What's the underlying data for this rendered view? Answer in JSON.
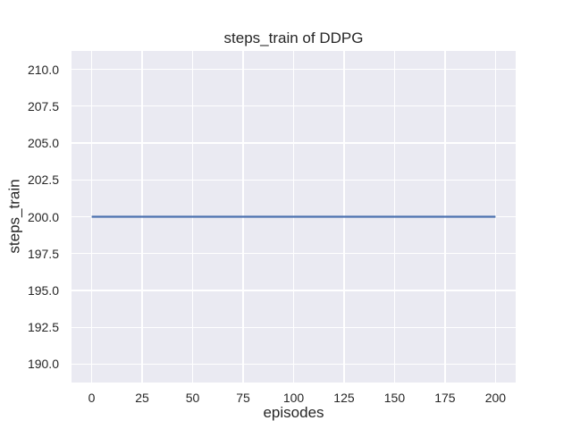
{
  "chart_data": {
    "type": "line",
    "title": "steps_train of DDPG",
    "xlabel": "episodes",
    "ylabel": "steps_train",
    "xlim": [
      -10,
      210
    ],
    "ylim": [
      188.75,
      211.25
    ],
    "x_tick_values": [
      0,
      25,
      50,
      75,
      100,
      125,
      150,
      175,
      200
    ],
    "x_tick_labels": [
      "0",
      "25",
      "50",
      "75",
      "100",
      "125",
      "150",
      "175",
      "200"
    ],
    "y_tick_values": [
      190.0,
      192.5,
      195.0,
      197.5,
      200.0,
      202.5,
      205.0,
      207.5,
      210.0
    ],
    "y_tick_labels": [
      "190.0",
      "192.5",
      "195.0",
      "197.5",
      "200.0",
      "202.5",
      "205.0",
      "207.5",
      "210.0"
    ],
    "grid": true,
    "legend": "none",
    "series": [
      {
        "name": "steps_train",
        "color": "#4C72B0",
        "x": [
          0,
          200
        ],
        "y": [
          200,
          200
        ]
      }
    ],
    "colors": {
      "figure_background": "#FFFFFF",
      "plot_background": "#EAEAF2",
      "grid": "#FFFFFF",
      "text": "#262626",
      "line": "#4C72B0"
    }
  }
}
